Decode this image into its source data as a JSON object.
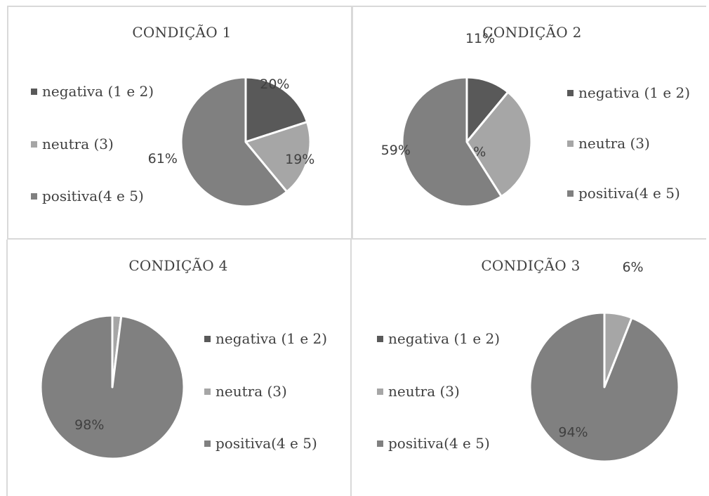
{
  "colors": {
    "negativa": "#595959",
    "neutra": "#a6a6a6",
    "positiva": "#808080"
  },
  "legend_labels": [
    "negativa (1 e 2)",
    "neutra (3)",
    "positiva(4 e 5)"
  ],
  "chart_data": [
    {
      "type": "pie",
      "title": "CONDIÇÃO 1",
      "categories": [
        "negativa (1 e 2)",
        "neutra (3)",
        "positiva(4 e 5)"
      ],
      "values": [
        20,
        19,
        61
      ],
      "data_labels": [
        "20%",
        "19%",
        "61%"
      ]
    },
    {
      "type": "pie",
      "title": "CONDIÇÃO 2",
      "categories": [
        "negativa (1 e 2)",
        "neutra (3)",
        "positiva(4 e 5)"
      ],
      "values": [
        11,
        30,
        59
      ],
      "data_labels": [
        "11%",
        "30%",
        "59%"
      ]
    },
    {
      "type": "pie",
      "title": "CONDIÇÃO 4",
      "categories": [
        "negativa (1 e 2)",
        "neutra (3)",
        "positiva(4 e 5)"
      ],
      "values": [
        0,
        2,
        98
      ],
      "data_labels": [
        "",
        "",
        "98%"
      ]
    },
    {
      "type": "pie",
      "title": "CONDIÇÃO 3",
      "categories": [
        "negativa (1 e 2)",
        "neutra (3)",
        "positiva(4 e 5)"
      ],
      "values": [
        0,
        6,
        94
      ],
      "data_labels": [
        "",
        "6%",
        "94%"
      ]
    }
  ]
}
